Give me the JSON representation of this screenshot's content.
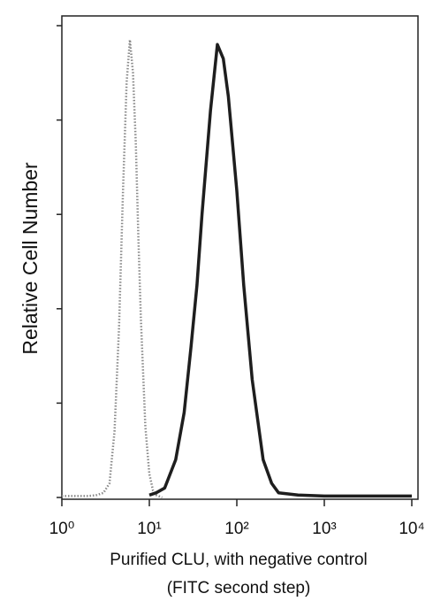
{
  "chart_data": {
    "type": "line",
    "xlabel": [
      "Purified CLU, with negative control",
      "(FITC second step)"
    ],
    "ylabel": "Relative Cell Number",
    "xscale": "log",
    "xlim": [
      1,
      10000
    ],
    "xticks": [
      {
        "value": 1,
        "label": "10⁰"
      },
      {
        "value": 10,
        "label": "10¹"
      },
      {
        "value": 100,
        "label": "10²"
      },
      {
        "value": 1000,
        "label": "10³"
      },
      {
        "value": 10000,
        "label": "10⁴"
      }
    ],
    "ylim": [
      0,
      100
    ],
    "yticks": [
      0,
      20,
      40,
      60,
      80,
      100
    ],
    "series": [
      {
        "color": "#8a8a8a",
        "style": "dotted",
        "x": [
          1,
          2,
          2.5,
          3,
          3.5,
          4,
          4.5,
          5,
          5.5,
          6,
          6.5,
          7,
          7.5,
          8,
          9,
          10,
          11,
          12,
          14
        ],
        "values": [
          0.3,
          0.3,
          0.5,
          1,
          3,
          14,
          36,
          65,
          88,
          97,
          90,
          75,
          55,
          38,
          15,
          5,
          1.5,
          0.5,
          0
        ]
      },
      {
        "color": "#1e1e1e",
        "style": "solid",
        "x": [
          10,
          12,
          15,
          20,
          25,
          30,
          35,
          40,
          50,
          60,
          70,
          80,
          100,
          120,
          150,
          200,
          250,
          300,
          500,
          1000,
          10000
        ],
        "values": [
          0.5,
          1,
          2,
          8,
          18,
          32,
          45,
          60,
          82,
          96,
          93,
          85,
          65,
          45,
          25,
          8,
          3,
          1,
          0.5,
          0.3,
          0.3
        ]
      }
    ]
  }
}
